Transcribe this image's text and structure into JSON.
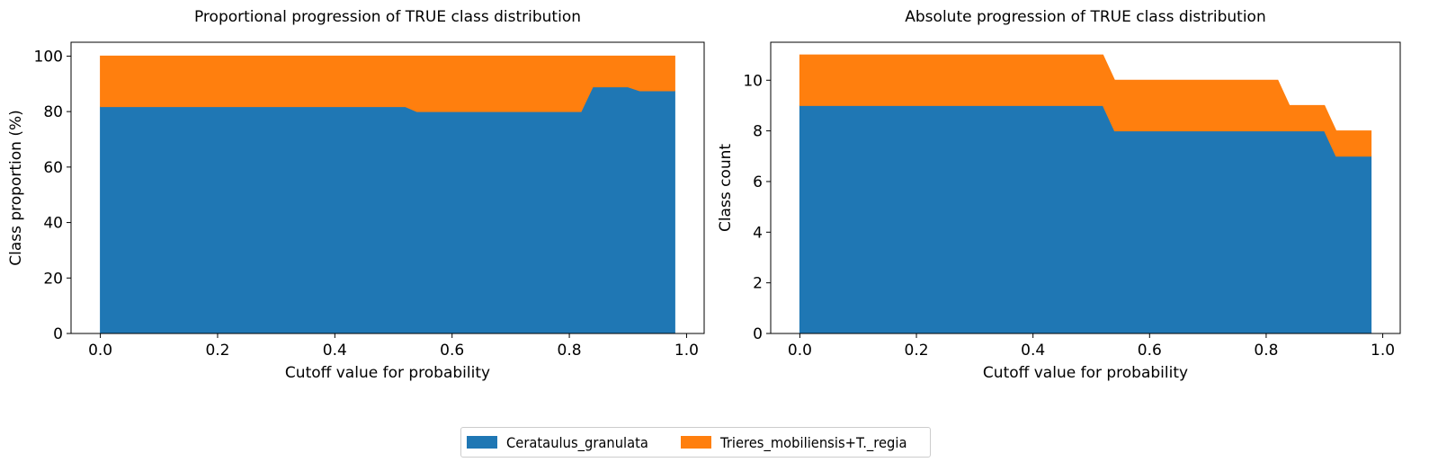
{
  "colors": {
    "series1": "#1f77b4",
    "series2": "#ff7f0e"
  },
  "legend": {
    "placement": "bottom-center",
    "items": [
      "Cerataulus_granulata",
      "Trieres_mobiliensis+T._regia"
    ]
  },
  "chart_data": [
    {
      "type": "area",
      "stacked": true,
      "title": "Proportional progression of TRUE class distribution",
      "xlabel": "Cutoff value for probability",
      "ylabel": "Class proportion (%)",
      "xlim": [
        -0.05,
        1.03
      ],
      "ylim": [
        0,
        105
      ],
      "xticks": [
        0.0,
        0.2,
        0.4,
        0.6,
        0.8,
        1.0
      ],
      "xtick_labels": [
        "0.0",
        "0.2",
        "0.4",
        "0.6",
        "0.8",
        "1.0"
      ],
      "yticks": [
        0,
        20,
        40,
        60,
        80,
        100
      ],
      "ytick_labels": [
        "0",
        "20",
        "40",
        "60",
        "80",
        "100"
      ],
      "grid": false,
      "x": [
        0.0,
        0.52,
        0.54,
        0.82,
        0.84,
        0.9,
        0.92,
        0.98
      ],
      "series": [
        {
          "name": "Cerataulus_granulata",
          "values": [
            81.8,
            81.8,
            80.0,
            80.0,
            88.9,
            88.9,
            87.5,
            87.5
          ]
        },
        {
          "name": "Trieres_mobiliensis+T._regia",
          "values": [
            18.2,
            18.2,
            20.0,
            20.0,
            11.1,
            11.1,
            12.5,
            12.5
          ]
        }
      ]
    },
    {
      "type": "area",
      "stacked": true,
      "title": "Absolute progression of TRUE class distribution",
      "xlabel": "Cutoff value for probability",
      "ylabel": "Class count",
      "xlim": [
        -0.05,
        1.03
      ],
      "ylim": [
        0,
        11.5
      ],
      "xticks": [
        0.0,
        0.2,
        0.4,
        0.6,
        0.8,
        1.0
      ],
      "xtick_labels": [
        "0.0",
        "0.2",
        "0.4",
        "0.6",
        "0.8",
        "1.0"
      ],
      "yticks": [
        0,
        2,
        4,
        6,
        8,
        10
      ],
      "ytick_labels": [
        "0",
        "2",
        "4",
        "6",
        "8",
        "10"
      ],
      "grid": false,
      "x": [
        0.0,
        0.52,
        0.54,
        0.82,
        0.84,
        0.9,
        0.92,
        0.98
      ],
      "series": [
        {
          "name": "Cerataulus_granulata",
          "values": [
            9,
            9,
            8,
            8,
            8,
            8,
            7,
            7
          ]
        },
        {
          "name": "Trieres_mobiliensis+T._regia",
          "values": [
            2,
            2,
            2,
            2,
            1,
            1,
            1,
            1
          ]
        }
      ]
    }
  ]
}
